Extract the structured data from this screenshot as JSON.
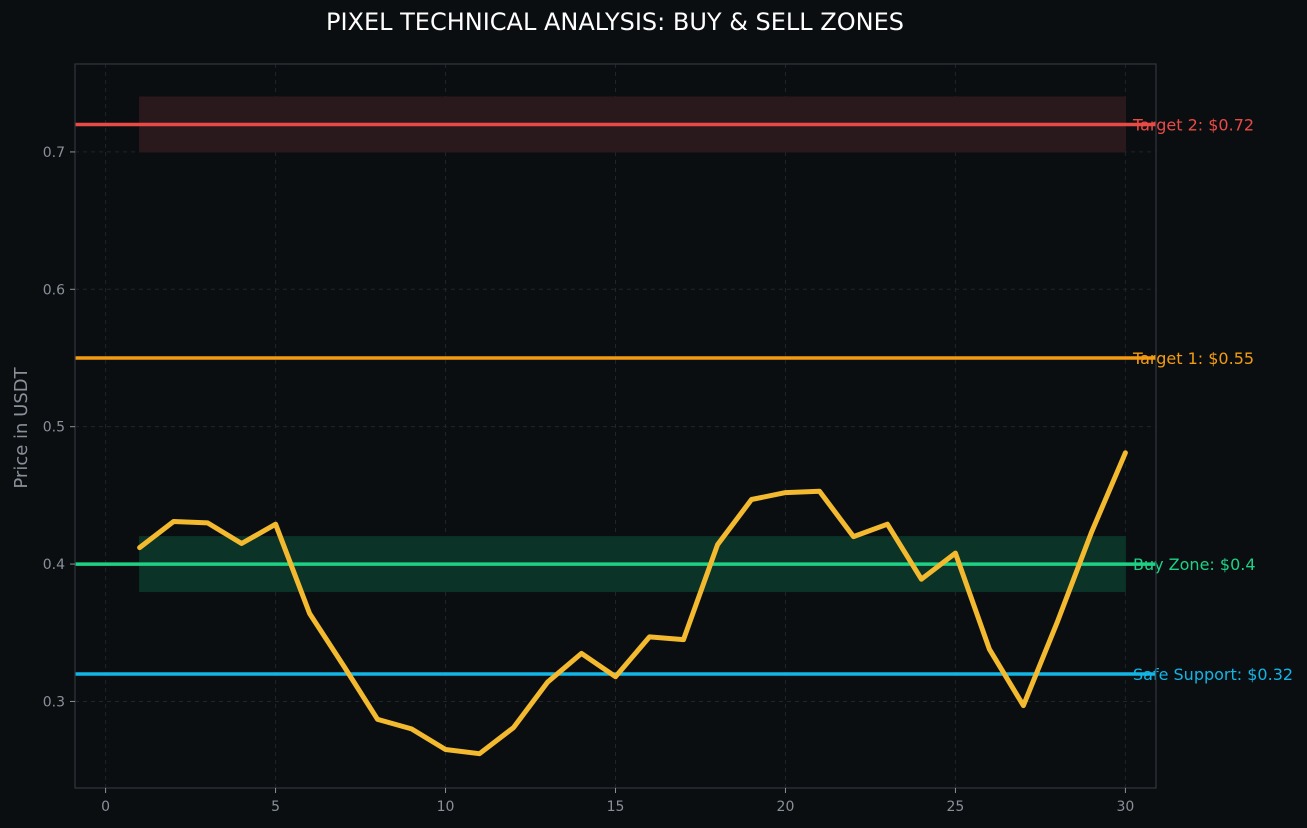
{
  "chart_data": {
    "type": "line",
    "title": "PIXEL TECHNICAL ANALYSIS: BUY & SELL ZONES",
    "xlabel": "",
    "ylabel": "Price in USDT",
    "xlim": [
      -0.9,
      30.9
    ],
    "ylim": [
      0.237,
      0.764
    ],
    "xticks": [
      0,
      5,
      10,
      15,
      20,
      25,
      30
    ],
    "yticks": [
      0.3,
      0.4,
      0.5,
      0.6,
      0.7
    ],
    "grid": true,
    "series": [
      {
        "color": "#f3ba2f",
        "x": [
          1,
          2,
          3,
          4,
          5,
          6,
          7,
          8,
          9,
          10,
          11,
          12,
          13,
          14,
          15,
          16,
          17,
          18,
          19,
          20,
          21,
          22,
          23,
          24,
          25,
          26,
          27,
          28,
          29,
          30
        ],
        "y": [
          0.412,
          0.431,
          0.43,
          0.415,
          0.429,
          0.364,
          0.326,
          0.287,
          0.28,
          0.265,
          0.262,
          0.281,
          0.314,
          0.335,
          0.318,
          0.347,
          0.345,
          0.414,
          0.447,
          0.452,
          0.453,
          0.42,
          0.429,
          0.389,
          0.408,
          0.338,
          0.297,
          0.358,
          0.423,
          0.481
        ]
      }
    ],
    "zones": [
      {
        "y0": 0.7,
        "y1": 0.74,
        "x0": 1,
        "x1": 30,
        "color": "#2a191c"
      },
      {
        "y0": 0.38,
        "y1": 0.42,
        "x0": 1,
        "x1": 30,
        "color": "#0b3327"
      }
    ],
    "hlines": [
      {
        "y": 0.72,
        "color": "#ea4a45",
        "label": "Target 2: $0.72"
      },
      {
        "y": 0.55,
        "color": "#f39c12",
        "label": "Target 1: $0.55"
      },
      {
        "y": 0.4,
        "color": "#1ed185",
        "label": "Buy Zone: $0.4"
      },
      {
        "y": 0.32,
        "color": "#12b5e5",
        "label": "Safe Support: $0.32"
      }
    ]
  }
}
